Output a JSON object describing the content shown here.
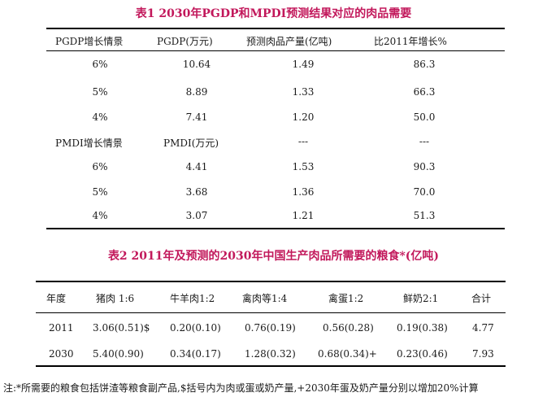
{
  "table1": {
    "caption": "表1  2030年PGDP和MPDI预测结果对应的肉品需要",
    "headers": [
      "PGDP增长情景",
      "PGDP(万元)",
      "预测肉品产量(亿吨)",
      "比2011年增长%"
    ],
    "section1_rows": [
      [
        "6%",
        "10.64",
        "1.49",
        "86.3"
      ],
      [
        "5%",
        "8.89",
        "1.33",
        "66.3"
      ],
      [
        "4%",
        "7.41",
        "1.20",
        "50.0"
      ]
    ],
    "subheader": [
      "PMDI增长情景",
      "PMDI(万元)",
      "---",
      "---"
    ],
    "section2_rows": [
      [
        "6%",
        "4.41",
        "1.53",
        "90.3"
      ],
      [
        "5%",
        "3.68",
        "1.36",
        "70.0"
      ],
      [
        "4%",
        "3.07",
        "1.21",
        "51.3"
      ]
    ]
  },
  "table2": {
    "caption": "表2  2011年及预测的2030年中国生产肉品所需要的粮食*(亿吨)",
    "headers": [
      "年度",
      "猪肉  1:6",
      "牛羊肉1:2",
      "禽肉等1:4",
      "禽蛋1:2",
      "鲜奶2:1",
      "合计"
    ],
    "rows": [
      [
        "2011",
        "3.06(0.51)$",
        "0.20(0.10)",
        "0.76(0.19)",
        "0.56(0.28)",
        "0.19(0.38)",
        "4.77"
      ],
      [
        "2030",
        "5.40(0.90)",
        "0.34(0.17)",
        "1.28(0.32)",
        "0.68(0.34)+",
        "0.23(0.46)",
        "7.93"
      ]
    ]
  },
  "footnote": "注:*所需要的粮食包括饼渣等粮食副产品,$括号内为肉或蛋或奶产量,+2030年蛋及奶产量分别以增加20%计算"
}
